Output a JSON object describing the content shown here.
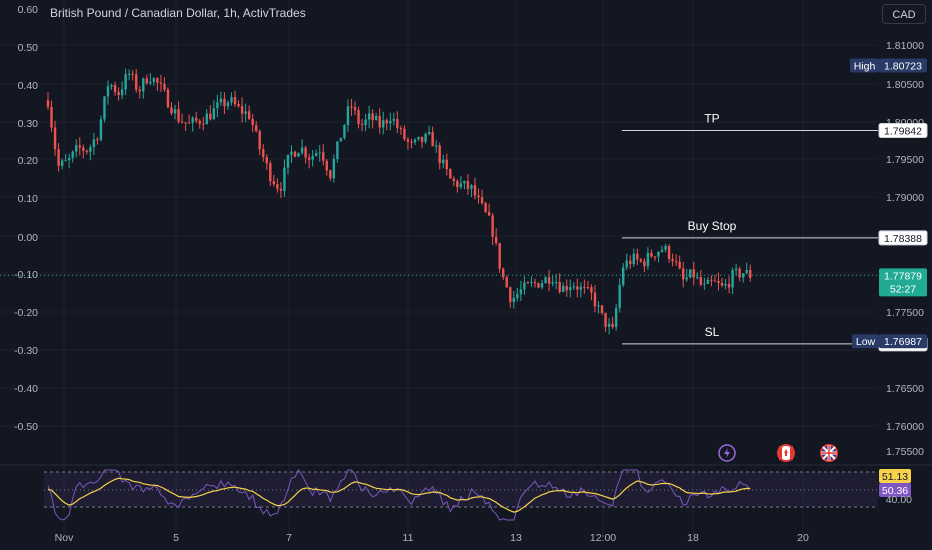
{
  "header": {
    "title": "British Pound / Canadian Dollar, 1h, ActivTrades",
    "currency_button": "CAD"
  },
  "chart_data": {
    "type": "candlestick",
    "left_axis": {
      "ticks": [
        "0.60",
        "0.50",
        "0.40",
        "0.30",
        "0.20",
        "0.10",
        "0.00",
        "-0.10",
        "-0.20",
        "-0.30",
        "-0.40",
        "-0.50"
      ]
    },
    "right_axis": {
      "ticks": [
        "1.81000",
        "1.80500",
        "1.80000",
        "1.79500",
        "1.79000",
        "1.78500",
        "1.78000",
        "1.77500",
        "1.76500",
        "1.76000",
        "1.75500"
      ]
    },
    "x_axis": {
      "ticks": [
        "Nov",
        "5",
        "7",
        "11",
        "13",
        "12:00",
        "18",
        "20"
      ]
    },
    "levels": [
      {
        "name": "TP",
        "value": "1.79842"
      },
      {
        "name": "Buy Stop",
        "value": "1.78388"
      },
      {
        "name": "SL",
        "value": "1.76951"
      }
    ],
    "high": {
      "label": "High",
      "value": "1.80723"
    },
    "low": {
      "label": "Low",
      "value": "1.76987"
    },
    "current": {
      "value": "1.77879",
      "countdown": "52:27"
    },
    "close_path": [
      [
        0,
        1.8025
      ],
      [
        0.3,
        1.7935
      ],
      [
        0.6,
        1.7942
      ],
      [
        0.9,
        1.796
      ],
      [
        1.2,
        1.7958
      ],
      [
        1.5,
        1.7982
      ],
      [
        1.8,
        1.805
      ],
      [
        2.1,
        1.8035
      ],
      [
        2.4,
        1.8062
      ],
      [
        2.7,
        1.8038
      ],
      [
        3.0,
        1.806
      ],
      [
        3.3,
        1.8045
      ],
      [
        3.6,
        1.8022
      ],
      [
        3.9,
        1.8
      ],
      [
        4.2,
        1.7992
      ],
      [
        4.5,
        1.7998
      ],
      [
        4.8,
        1.8005
      ],
      [
        5.1,
        1.8018
      ],
      [
        5.4,
        1.8025
      ],
      [
        5.7,
        1.8012
      ],
      [
        6.0,
        1.8005
      ],
      [
        6.3,
        1.796
      ],
      [
        6.6,
        1.7925
      ],
      [
        6.9,
        1.7905
      ],
      [
        7.2,
        1.7952
      ],
      [
        7.5,
        1.7962
      ],
      [
        7.8,
        1.7948
      ],
      [
        8.1,
        1.796
      ],
      [
        8.4,
        1.7925
      ],
      [
        8.7,
        1.7975
      ],
      [
        9.0,
        1.802
      ],
      [
        9.3,
        1.799
      ],
      [
        9.6,
        1.8002
      ],
      [
        9.9,
        1.799
      ],
      [
        10.2,
        1.8005
      ],
      [
        10.5,
        1.798
      ],
      [
        10.8,
        1.7962
      ],
      [
        11.1,
        1.797
      ],
      [
        11.4,
        1.7975
      ],
      [
        11.7,
        1.7942
      ],
      [
        12.0,
        1.7915
      ],
      [
        12.3,
        1.791
      ],
      [
        12.6,
        1.7905
      ],
      [
        12.9,
        1.788
      ],
      [
        13.2,
        1.7855
      ],
      [
        13.5,
        1.779
      ],
      [
        13.8,
        1.7755
      ],
      [
        14.1,
        1.7768
      ],
      [
        14.4,
        1.7775
      ],
      [
        14.7,
        1.778
      ],
      [
        15.0,
        1.7788
      ],
      [
        15.3,
        1.777
      ],
      [
        15.6,
        1.7778
      ],
      [
        15.9,
        1.7768
      ],
      [
        16.2,
        1.776
      ],
      [
        16.5,
        1.773
      ],
      [
        16.8,
        1.771
      ],
      [
        17.1,
        1.78
      ],
      [
        17.4,
        1.781
      ],
      [
        17.7,
        1.7805
      ],
      [
        18.0,
        1.7818
      ],
      [
        18.3,
        1.7825
      ],
      [
        18.6,
        1.7812
      ],
      [
        18.9,
        1.778
      ],
      [
        19.2,
        1.779
      ],
      [
        19.5,
        1.777
      ],
      [
        19.8,
        1.7778
      ],
      [
        20.1,
        1.777
      ],
      [
        20.4,
        1.7788
      ],
      [
        20.7,
        1.7792
      ],
      [
        20.9,
        1.7788
      ]
    ],
    "indicator": {
      "levels": [
        "51.13",
        "50.36",
        "40.00"
      ]
    },
    "event_icons": [
      "lightning-icon",
      "canada-flag-icon",
      "uk-flag-icon"
    ],
    "colors": {
      "up": "#26a69a",
      "down": "#ef5350",
      "osc": "#7e57c2",
      "signal": "#f7d14a",
      "current": "#22ab94",
      "dark_label": "#2a3a66"
    }
  }
}
